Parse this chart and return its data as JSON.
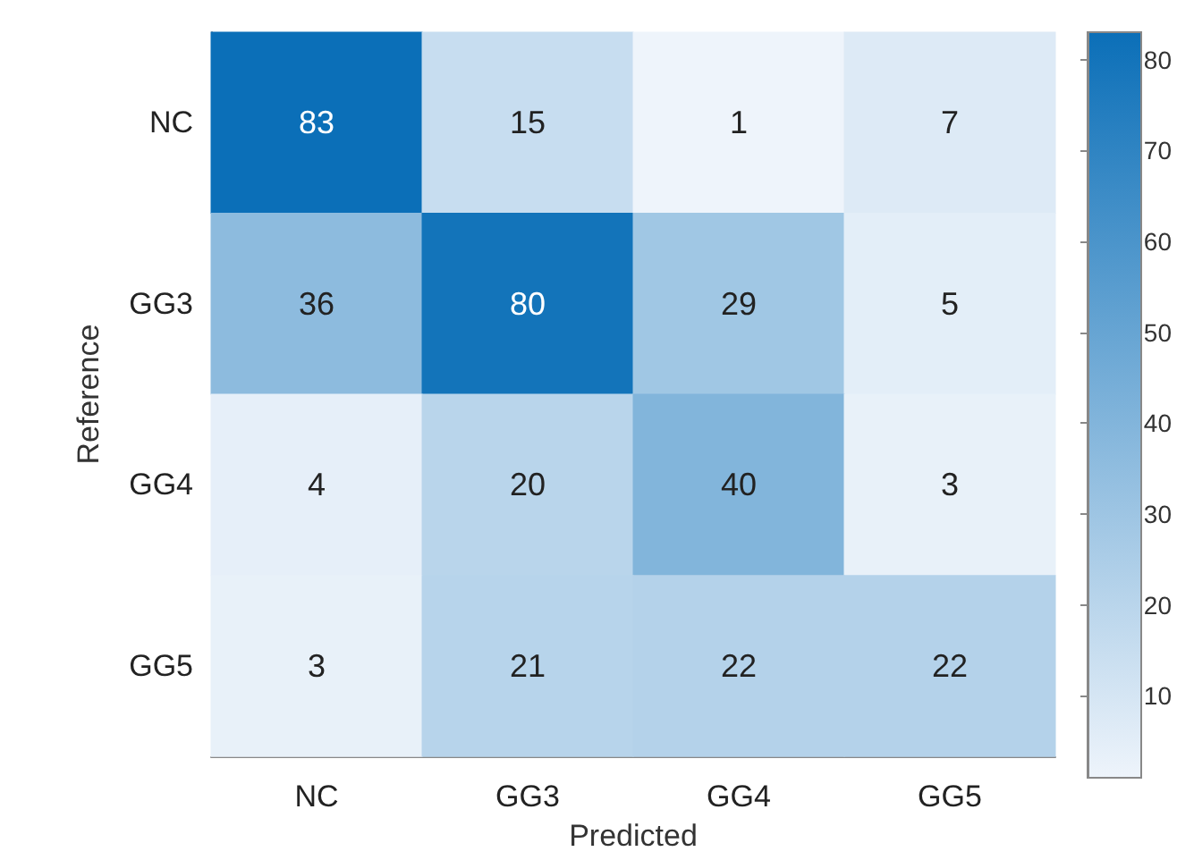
{
  "chart_data": {
    "type": "heatmap",
    "xlabel": "Predicted",
    "ylabel": "Reference",
    "categories": [
      "NC",
      "GG3",
      "GG4",
      "GG5"
    ],
    "y_categories": [
      "NC",
      "GG3",
      "GG4",
      "GG5"
    ],
    "cells": [
      [
        83,
        15,
        1,
        7
      ],
      [
        36,
        80,
        29,
        5
      ],
      [
        4,
        20,
        40,
        3
      ],
      [
        3,
        21,
        22,
        22
      ]
    ],
    "data_labels": true,
    "clim": [
      1,
      83
    ],
    "cticks": [
      10,
      20,
      30,
      40,
      50,
      60,
      70,
      80
    ]
  }
}
